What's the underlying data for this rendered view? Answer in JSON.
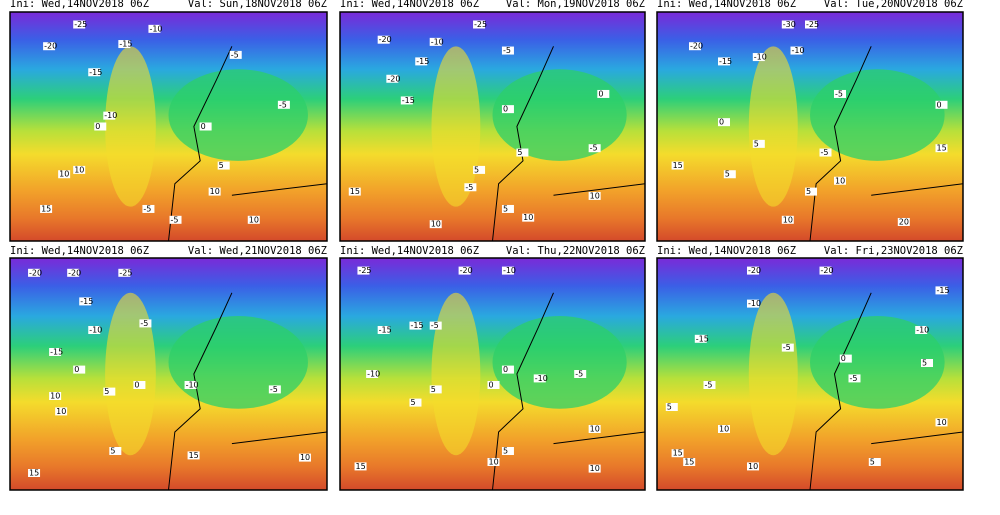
{
  "panels": [
    {
      "init": "Ini: Wed,14NOV2018 06Z",
      "valid": "Val: Sun,18NOV2018 06Z",
      "labels": [
        "-25",
        "-20",
        "-15",
        "-10",
        "-15",
        "-10",
        "-5",
        "0",
        "-5",
        "0",
        "5",
        "10",
        "10",
        "15",
        "-5",
        "10",
        "10",
        "-5"
      ]
    },
    {
      "init": "Ini: Wed,14NOV2018 06Z",
      "valid": "Val: Mon,19NOV2018 06Z",
      "labels": [
        "-25",
        "-20",
        "-15",
        "-10",
        "-20",
        "-5",
        "-15",
        "0",
        "-5",
        "0",
        "5",
        "5",
        "15",
        "10",
        "5",
        "10",
        "-5",
        "10"
      ]
    },
    {
      "init": "Ini: Wed,14NOV2018 06Z",
      "valid": "Val: Tue,20NOV2018 06Z",
      "labels": [
        "-30",
        "-25",
        "-20",
        "-15",
        "-10",
        "-10",
        "-5",
        "0",
        "5",
        "-5",
        "0",
        "15",
        "5",
        "10",
        "5",
        "20",
        "15",
        "10"
      ]
    },
    {
      "init": "Ini: Wed,14NOV2018 06Z",
      "valid": "Val: Wed,21NOV2018 06Z",
      "labels": [
        "-20",
        "-25",
        "-20",
        "-15",
        "-10",
        "-5",
        "-15",
        "0",
        "-10",
        "-5",
        "0",
        "10",
        "5",
        "10",
        "5",
        "15",
        "15",
        "10"
      ]
    },
    {
      "init": "Ini: Wed,14NOV2018 06Z",
      "valid": "Val: Thu,22NOV2018 06Z",
      "labels": [
        "-20",
        "-25",
        "-10",
        "-15",
        "-5",
        "-15",
        "-10",
        "0",
        "-10",
        "-5",
        "0",
        "5",
        "5",
        "10",
        "10",
        "15",
        "5",
        "10"
      ]
    },
    {
      "init": "Ini: Wed,14NOV2018 06Z",
      "valid": "Val: Fri,23NOV2018 06Z",
      "labels": [
        "-20",
        "-20",
        "-15",
        "-10",
        "-15",
        "-5",
        "-10",
        "-5",
        "-5",
        "0",
        "5",
        "5",
        "10",
        "15",
        "15",
        "10",
        "5",
        "10"
      ]
    }
  ]
}
